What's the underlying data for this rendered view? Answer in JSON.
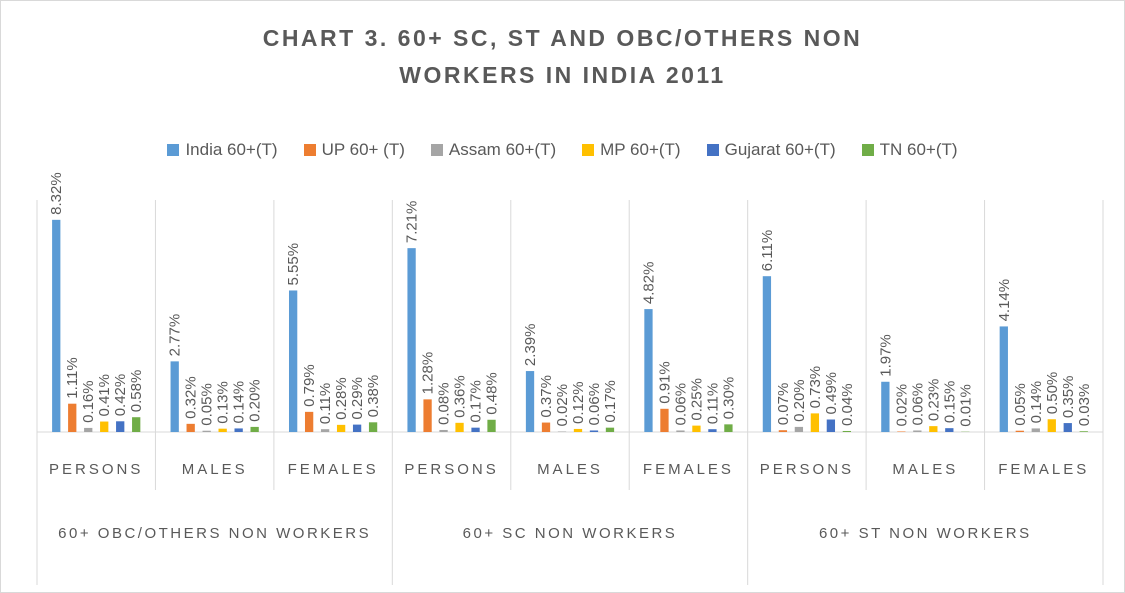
{
  "chart_data": {
    "type": "bar",
    "title": "CHART 3. 60+ SC, ST AND OBC/OTHERS NON WORKERS IN INDIA 2011",
    "categories": [
      "PERSONS",
      "MALES",
      "FEMALES",
      "PERSONS",
      "MALES",
      "FEMALES",
      "PERSONS",
      "MALES",
      "FEMALES"
    ],
    "category_groups": [
      "60+ OBC/OTHERS NON WORKERS",
      "60+ SC NON WORKERS",
      "60+ ST NON WORKERS"
    ],
    "ylim": [
      0,
      10
    ],
    "legend": "top",
    "series": [
      {
        "name": "India 60+(T)",
        "color": "#5b9bd5",
        "values": [
          8.32,
          2.77,
          5.55,
          7.21,
          2.39,
          4.82,
          6.11,
          1.97,
          4.14
        ],
        "value_labels": [
          "8.32%",
          "2.77%",
          "5.55%",
          "7.21%",
          "2.39%",
          "4.82%",
          "6.11%",
          "1.97%",
          "4.14%"
        ]
      },
      {
        "name": "UP 60+ (T)",
        "color": "#ed7d31",
        "values": [
          1.11,
          0.32,
          0.79,
          1.28,
          0.37,
          0.91,
          0.07,
          0.02,
          0.05
        ],
        "value_labels": [
          "1.11%",
          "0.32%",
          "0.79%",
          "1.28%",
          "0.37%",
          "0.91%",
          "0.07%",
          "0.02%",
          "0.05%"
        ]
      },
      {
        "name": "Assam 60+(T)",
        "color": "#a5a5a5",
        "values": [
          0.16,
          0.05,
          0.11,
          0.08,
          0.02,
          0.06,
          0.2,
          0.06,
          0.14
        ],
        "value_labels": [
          "0.16%",
          "0.05%",
          "0.11%",
          "0.08%",
          "0.02%",
          "0.06%",
          "0.20%",
          "0.06%",
          "0.14%"
        ]
      },
      {
        "name": "MP 60+(T)",
        "color": "#ffc000",
        "values": [
          0.41,
          0.13,
          0.28,
          0.36,
          0.12,
          0.25,
          0.73,
          0.23,
          0.5
        ],
        "value_labels": [
          "0.41%",
          "0.13%",
          "0.28%",
          "0.36%",
          "0.12%",
          "0.25%",
          "0.73%",
          "0.23%",
          "0.50%"
        ]
      },
      {
        "name": "Gujarat 60+(T)",
        "color": "#4472c4",
        "values": [
          0.42,
          0.14,
          0.29,
          0.17,
          0.06,
          0.11,
          0.49,
          0.15,
          0.35
        ],
        "value_labels": [
          "0.42%",
          "0.14%",
          "0.29%",
          "0.17%",
          "0.06%",
          "0.11%",
          "0.49%",
          "0.15%",
          "0.35%"
        ]
      },
      {
        "name": "TN 60+(T)",
        "color": "#70ad47",
        "values": [
          0.58,
          0.2,
          0.38,
          0.48,
          0.17,
          0.3,
          0.04,
          0.01,
          0.03
        ],
        "value_labels": [
          "0.58%",
          "0.20%",
          "0.38%",
          "0.48%",
          "0.17%",
          "0.30%",
          "0.04%",
          "0.01%",
          "0.03%"
        ]
      }
    ]
  }
}
